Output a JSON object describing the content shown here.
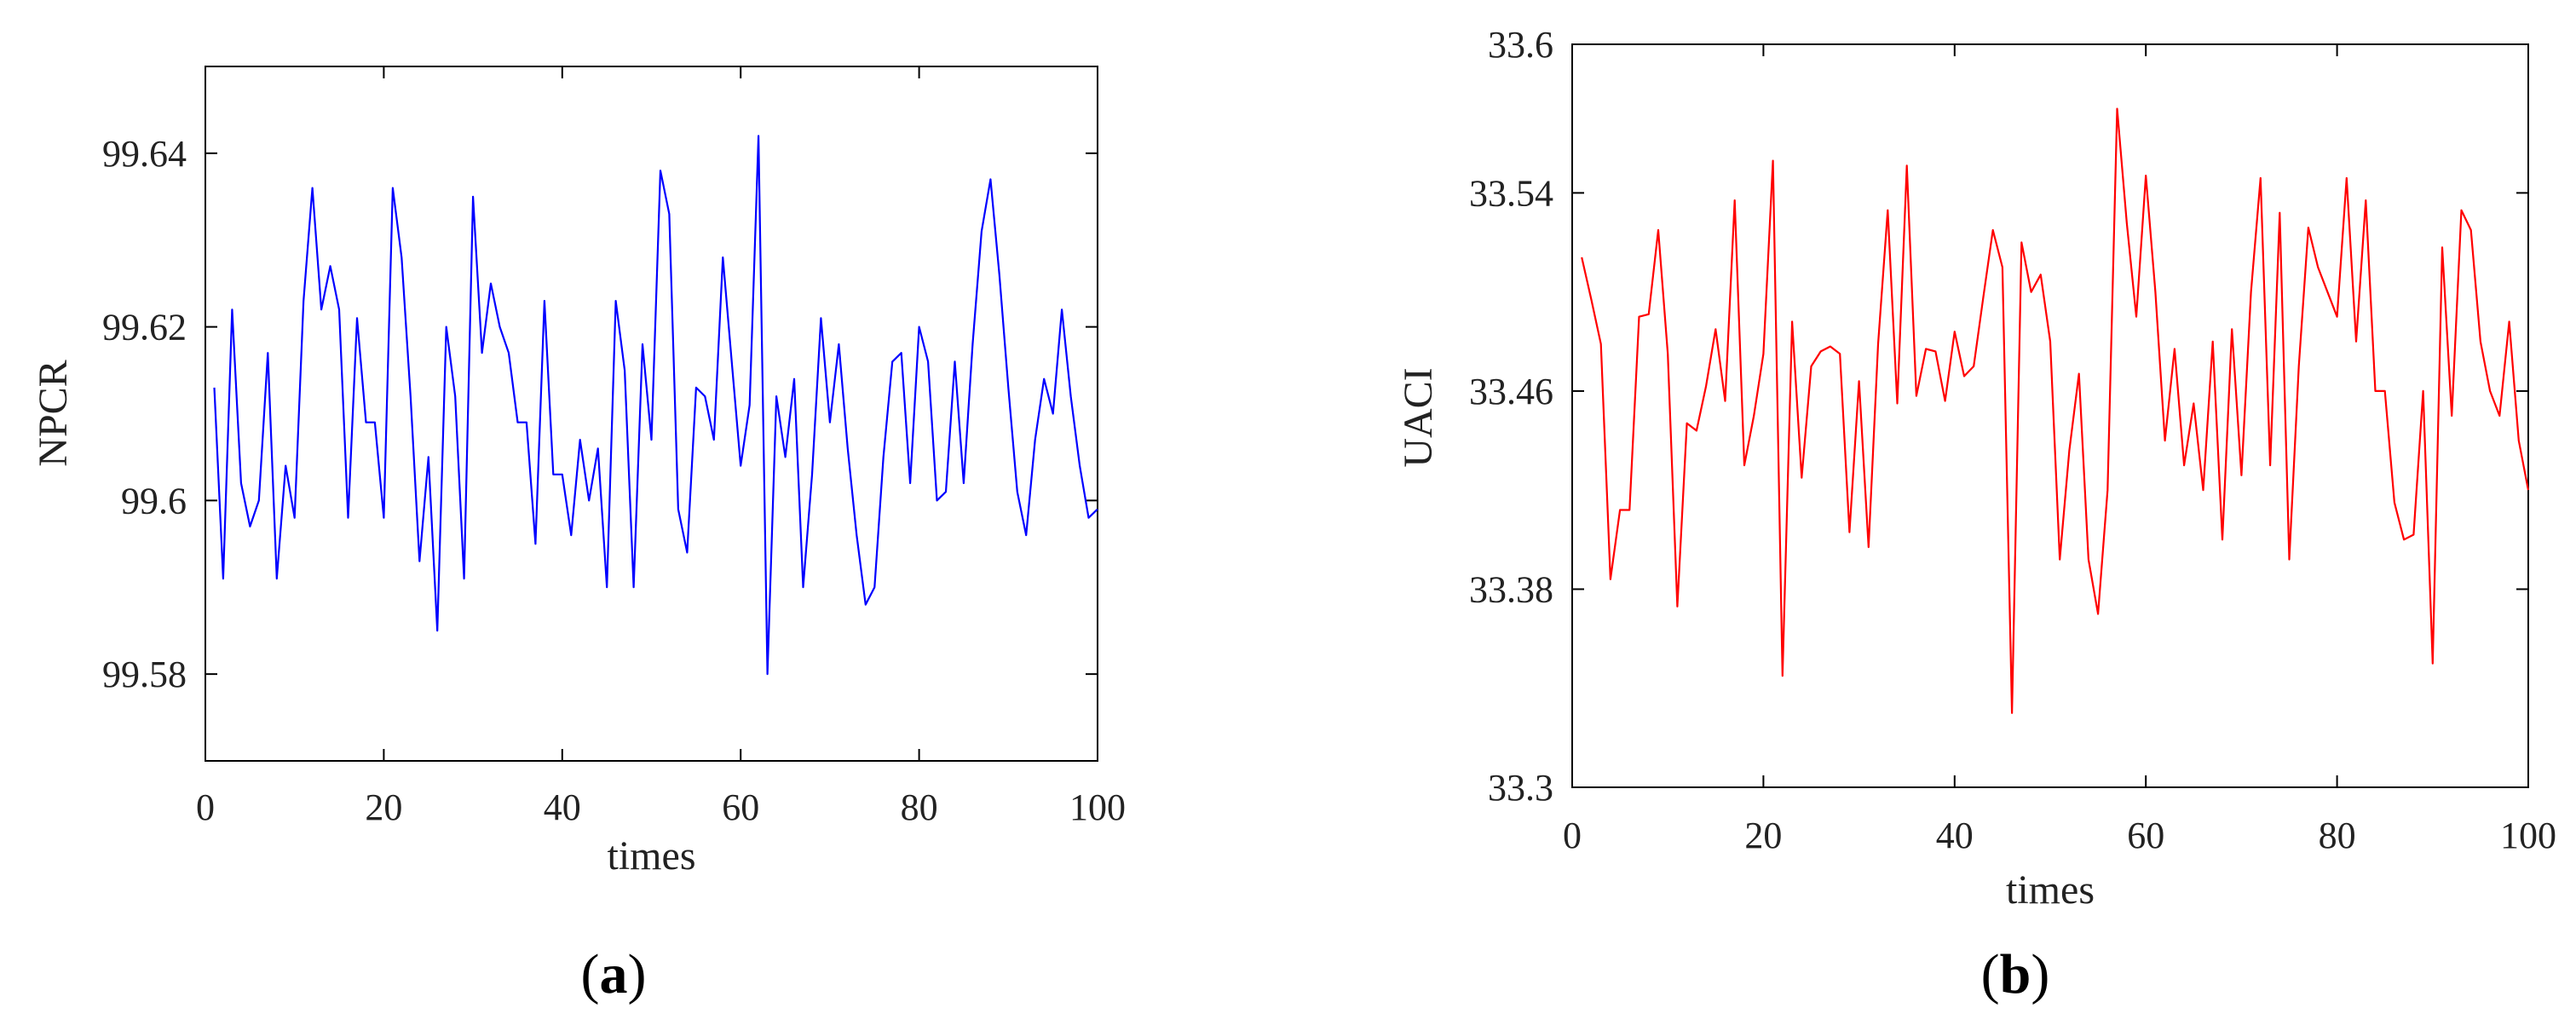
{
  "chart_data": [
    {
      "type": "line",
      "panel_label": "a",
      "xlabel": "times",
      "ylabel": "NPCR",
      "xlim": [
        0,
        100
      ],
      "ylim": [
        99.57,
        99.65
      ],
      "xticks": [
        0,
        20,
        40,
        60,
        80,
        100
      ],
      "yticks": [
        99.58,
        99.6,
        99.62,
        99.64
      ],
      "xtick_labels": [
        "0",
        "20",
        "40",
        "60",
        "80",
        "100"
      ],
      "ytick_labels": [
        "99.58",
        "99.6",
        "99.62",
        "99.64"
      ],
      "grid": false,
      "series": [
        {
          "color": "#0000ff",
          "x": [
            1,
            2,
            3,
            4,
            5,
            6,
            7,
            8,
            9,
            10,
            11,
            12,
            13,
            14,
            15,
            16,
            17,
            18,
            19,
            20,
            21,
            22,
            23,
            24,
            25,
            26,
            27,
            28,
            29,
            30,
            31,
            32,
            33,
            34,
            35,
            36,
            37,
            38,
            39,
            40,
            41,
            42,
            43,
            44,
            45,
            46,
            47,
            48,
            49,
            50,
            51,
            52,
            53,
            54,
            55,
            56,
            57,
            58,
            59,
            60,
            61,
            62,
            63,
            64,
            65,
            66,
            67,
            68,
            69,
            70,
            71,
            72,
            73,
            74,
            75,
            76,
            77,
            78,
            79,
            80,
            81,
            82,
            83,
            84,
            85,
            86,
            87,
            88,
            89,
            90,
            91,
            92,
            93,
            94,
            95,
            96,
            97,
            98,
            99,
            100
          ],
          "values": [
            99.613,
            99.591,
            99.622,
            99.602,
            99.597,
            99.6,
            99.617,
            99.591,
            99.604,
            99.598,
            99.623,
            99.636,
            99.622,
            99.627,
            99.622,
            99.598,
            99.621,
            99.609,
            99.609,
            99.598,
            99.636,
            99.628,
            99.612,
            99.593,
            99.605,
            99.585,
            99.62,
            99.612,
            99.591,
            99.635,
            99.617,
            99.625,
            99.62,
            99.617,
            99.609,
            99.609,
            99.595,
            99.623,
            99.603,
            99.603,
            99.596,
            99.607,
            99.6,
            99.606,
            99.59,
            99.623,
            99.615,
            99.59,
            99.618,
            99.607,
            99.638,
            99.633,
            99.599,
            99.594,
            99.613,
            99.612,
            99.607,
            99.628,
            99.616,
            99.604,
            99.611,
            99.642,
            99.58,
            99.612,
            99.605,
            99.614,
            99.59,
            99.603,
            99.621,
            99.609,
            99.618,
            99.606,
            99.596,
            99.588,
            99.59,
            99.605,
            99.616,
            99.617,
            99.602,
            99.62,
            99.616,
            99.6,
            99.601,
            99.616,
            99.602,
            99.618,
            99.631,
            99.637,
            99.626,
            99.613,
            99.601,
            99.596,
            99.607,
            99.614,
            99.61,
            99.622,
            99.612,
            99.604,
            99.598,
            99.599
          ]
        }
      ]
    },
    {
      "type": "line",
      "panel_label": "b",
      "xlabel": "times",
      "ylabel": "UACI",
      "xlim": [
        0,
        100
      ],
      "ylim": [
        33.3,
        33.6
      ],
      "xticks": [
        0,
        20,
        40,
        60,
        80,
        100
      ],
      "yticks": [
        33.3,
        33.38,
        33.46,
        33.54,
        33.6
      ],
      "xtick_labels": [
        "0",
        "20",
        "40",
        "60",
        "80",
        "100"
      ],
      "ytick_labels": [
        "33.3",
        "33.38",
        "33.46",
        "33.54",
        "33.6"
      ],
      "grid": false,
      "series": [
        {
          "color": "#ff0000",
          "x": [
            1,
            2,
            3,
            4,
            5,
            6,
            7,
            8,
            9,
            10,
            11,
            12,
            13,
            14,
            15,
            16,
            17,
            18,
            19,
            20,
            21,
            22,
            23,
            24,
            25,
            26,
            27,
            28,
            29,
            30,
            31,
            32,
            33,
            34,
            35,
            36,
            37,
            38,
            39,
            40,
            41,
            42,
            43,
            44,
            45,
            46,
            47,
            48,
            49,
            50,
            51,
            52,
            53,
            54,
            55,
            56,
            57,
            58,
            59,
            60,
            61,
            62,
            63,
            64,
            65,
            66,
            67,
            68,
            69,
            70,
            71,
            72,
            73,
            74,
            75,
            76,
            77,
            78,
            79,
            80,
            81,
            82,
            83,
            84,
            85,
            86,
            87,
            88,
            89,
            90,
            91,
            92,
            93,
            94,
            95,
            96,
            97,
            98,
            99,
            100
          ],
          "values": [
            33.514,
            33.497,
            33.479,
            33.384,
            33.412,
            33.412,
            33.49,
            33.491,
            33.525,
            33.475,
            33.373,
            33.447,
            33.444,
            33.462,
            33.485,
            33.456,
            33.537,
            33.43,
            33.45,
            33.475,
            33.553,
            33.345,
            33.488,
            33.425,
            33.47,
            33.476,
            33.478,
            33.475,
            33.403,
            33.464,
            33.397,
            33.479,
            33.533,
            33.455,
            33.551,
            33.458,
            33.477,
            33.476,
            33.456,
            33.484,
            33.466,
            33.47,
            33.498,
            33.525,
            33.51,
            33.33,
            33.52,
            33.5,
            33.507,
            33.48,
            33.392,
            33.436,
            33.467,
            33.392,
            33.37,
            33.42,
            33.574,
            33.528,
            33.49,
            33.547,
            33.5,
            33.44,
            33.477,
            33.43,
            33.455,
            33.42,
            33.48,
            33.4,
            33.485,
            33.426,
            33.5,
            33.546,
            33.43,
            33.532,
            33.392,
            33.47,
            33.526,
            33.51,
            33.5,
            33.49,
            33.546,
            33.48,
            33.537,
            33.46,
            33.46,
            33.415,
            33.4,
            33.402,
            33.46,
            33.35,
            33.518,
            33.45,
            33.533,
            33.525,
            33.48,
            33.46,
            33.45,
            33.488,
            33.44,
            33.42
          ]
        }
      ]
    }
  ]
}
